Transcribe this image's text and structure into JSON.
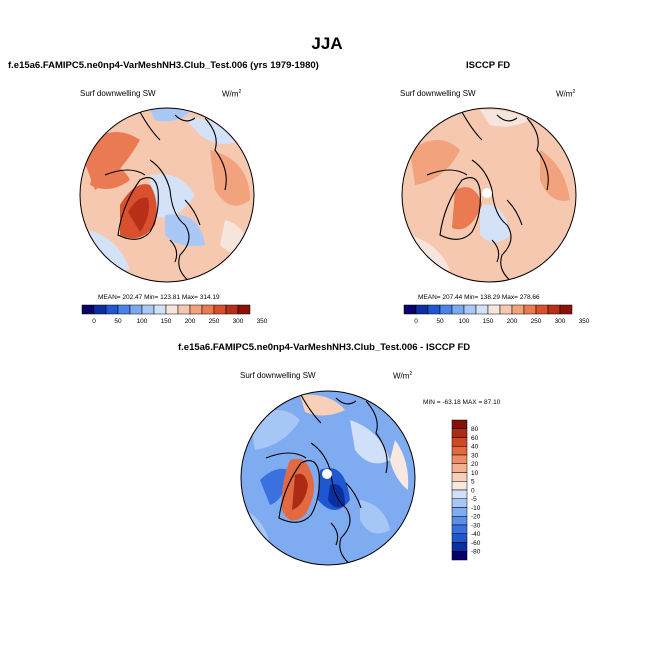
{
  "title": "JJA",
  "panels": [
    {
      "name": "model",
      "title": "f.e15a6.FAMIPC5.ne0np4-VarMeshNH3.Club_Test.006 (yrs 1979-1980)",
      "label": "Surf downwelling SW",
      "units_base": "W/m",
      "units_exp": "2",
      "stats": "MEAN= 202.47  Min= 123.81  Max= 314.19"
    },
    {
      "name": "obs",
      "title": "ISCCP FD",
      "label": "Surf downwelling SW",
      "units_base": "W/m",
      "units_exp": "2",
      "stats": "MEAN= 207.44  Min= 138.29  Max= 278.66"
    },
    {
      "name": "diff",
      "title": "f.e15a6.FAMIPC5.ne0np4-VarMeshNH3.Club_Test.006 - ISCCP FD",
      "label": "Surf downwelling SW",
      "units_base": "W/m",
      "units_exp": "2",
      "stats": "MIN = -63.18 MAX =  87.10"
    }
  ],
  "colors": {
    "abs_scale": [
      "#08006b",
      "#0c2fa0",
      "#1f57d1",
      "#4a82e6",
      "#7aa9f0",
      "#a9c8f5",
      "#d3e2f7",
      "#f6e5dd",
      "#f7c8b0",
      "#f2a27c",
      "#ea7a52",
      "#d9502e",
      "#b8301a",
      "#8a1208"
    ],
    "diff_scale": [
      "#08006b",
      "#0c2fa0",
      "#1f57d1",
      "#3a70e0",
      "#5a8eea",
      "#7fabf1",
      "#a6c6f5",
      "#cfe0f8",
      "#f8e8df",
      "#f8cfb8",
      "#f4b08e",
      "#ee8c64",
      "#e36a40",
      "#cf4a24",
      "#ad2b14",
      "#821006"
    ]
  },
  "chart_data": [
    {
      "type": "heatmap",
      "projection": "north polar stereographic",
      "title": "f.e15a6.FAMIPC5.ne0np4-VarMeshNH3.Club_Test.006 (yrs 1979-1980)",
      "variable": "Surf downwelling SW",
      "units": "W/m2",
      "mean": 202.47,
      "min": 123.81,
      "max": 314.19,
      "colorbar_ticks": [
        0,
        50,
        100,
        150,
        200,
        250,
        300,
        350
      ],
      "colorbar_tick_labels": [
        "0",
        "50",
        "100",
        "150",
        "200",
        "250",
        "300",
        "350"
      ]
    },
    {
      "type": "heatmap",
      "projection": "north polar stereographic",
      "title": "ISCCP FD",
      "variable": "Surf downwelling SW",
      "units": "W/m2",
      "mean": 207.44,
      "min": 138.29,
      "max": 278.66,
      "colorbar_ticks": [
        0,
        50,
        100,
        150,
        200,
        250,
        300,
        350
      ],
      "colorbar_tick_labels": [
        "0",
        "50",
        "100",
        "150",
        "200",
        "250",
        "300",
        "350"
      ]
    },
    {
      "type": "heatmap",
      "projection": "north polar stereographic",
      "title": "f.e15a6.FAMIPC5.ne0np4-VarMeshNH3.Club_Test.006 - ISCCP FD",
      "variable": "Surf downwelling SW",
      "units": "W/m2",
      "min": -63.18,
      "max": 87.1,
      "colorbar_ticks": [
        80,
        60,
        40,
        30,
        20,
        10,
        5,
        0,
        -5,
        -10,
        -20,
        -30,
        -40,
        -60,
        -80
      ],
      "colorbar_tick_labels": [
        "80",
        "60",
        "40",
        "30",
        "20",
        "10",
        "5",
        "0",
        "-5",
        "-10",
        "-20",
        "-30",
        "-40",
        "-60",
        "-80"
      ]
    }
  ]
}
